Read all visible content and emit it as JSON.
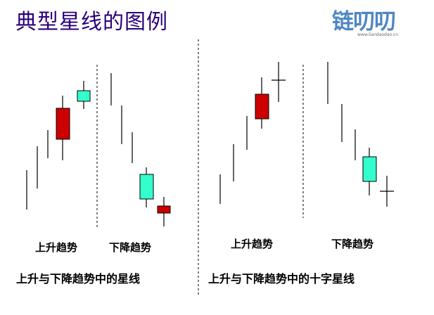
{
  "title": "典型星线的图例",
  "logo": {
    "text": "链叨叨",
    "url": "www.liandaodao.cn"
  },
  "colors": {
    "bullish": "#cc0000",
    "bearish": "#33ffcc",
    "wick": "#000000",
    "title": "#2a007a",
    "logo": "#4f86c3"
  },
  "panels": [
    {
      "caption": "上升与下降趋势中的星线",
      "groups": [
        {
          "label": "上升趋势"
        },
        {
          "label": "下降趋势"
        }
      ]
    },
    {
      "caption": "上升与下降趋势中的十字星线",
      "groups": [
        {
          "label": "上升趋势"
        },
        {
          "label": "下降趋势"
        }
      ]
    }
  ]
}
